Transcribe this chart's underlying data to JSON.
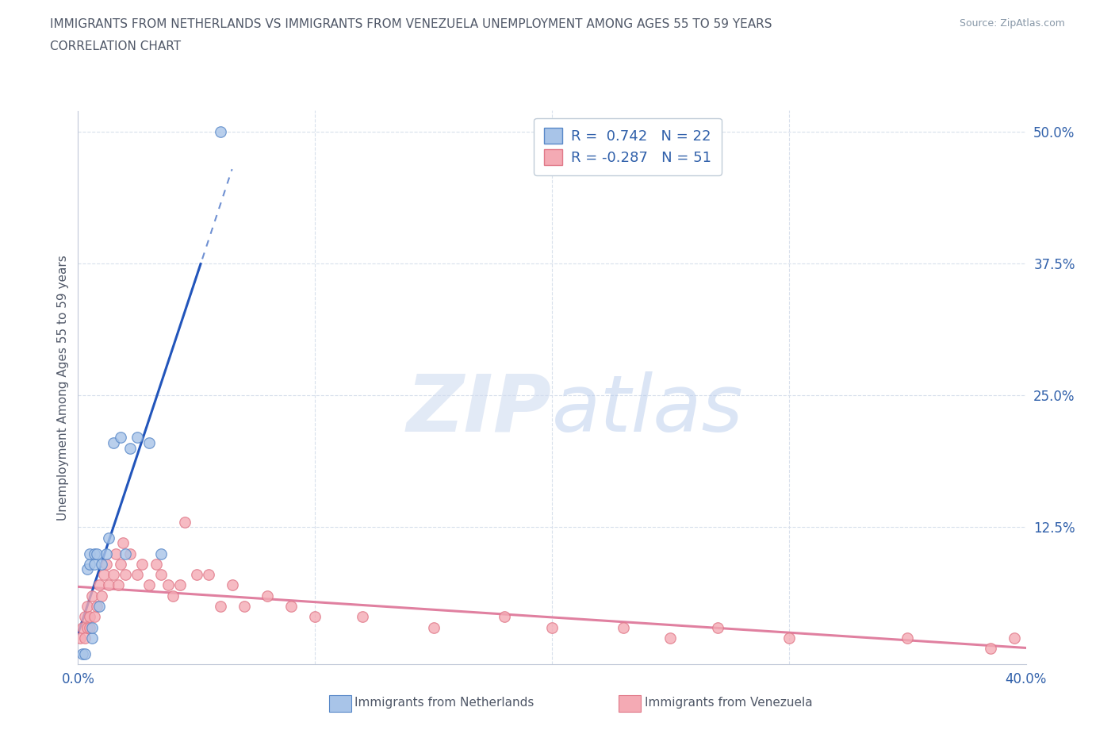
{
  "title_line1": "IMMIGRANTS FROM NETHERLANDS VS IMMIGRANTS FROM VENEZUELA UNEMPLOYMENT AMONG AGES 55 TO 59 YEARS",
  "title_line2": "CORRELATION CHART",
  "source": "Source: ZipAtlas.com",
  "ylabel": "Unemployment Among Ages 55 to 59 years",
  "xlim": [
    0.0,
    0.4
  ],
  "ylim": [
    0.0,
    0.5
  ],
  "xtick_vals": [
    0.0,
    0.4
  ],
  "xtick_labels": [
    "0.0%",
    "40.0%"
  ],
  "ytick_vals": [
    0.0,
    0.125,
    0.25,
    0.375,
    0.5
  ],
  "ytick_labels": [
    "",
    "12.5%",
    "25.0%",
    "37.5%",
    "50.0%"
  ],
  "watermark_zip": "ZIP",
  "watermark_atlas": "atlas",
  "legend_label1": "R =  0.742   N = 22",
  "legend_label2": "R = -0.287   N = 51",
  "netherlands_face": "#a8c4e8",
  "netherlands_edge": "#5888c8",
  "venezuela_face": "#f4aaB4",
  "venezuela_edge": "#e07888",
  "trend_nl_color": "#2255bb",
  "trend_vz_color": "#e080a0",
  "grid_color": "#d8e0ec",
  "title_color": "#505868",
  "axis_label_color": "#3060aa",
  "nl_x": [
    0.002,
    0.003,
    0.004,
    0.005,
    0.005,
    0.006,
    0.006,
    0.007,
    0.007,
    0.008,
    0.009,
    0.01,
    0.012,
    0.013,
    0.015,
    0.018,
    0.02,
    0.022,
    0.025,
    0.03,
    0.035,
    0.06
  ],
  "nl_y": [
    0.005,
    0.005,
    0.085,
    0.09,
    0.1,
    0.02,
    0.03,
    0.09,
    0.1,
    0.1,
    0.05,
    0.09,
    0.1,
    0.115,
    0.205,
    0.21,
    0.1,
    0.2,
    0.21,
    0.205,
    0.1,
    0.5
  ],
  "vz_x": [
    0.001,
    0.002,
    0.003,
    0.003,
    0.004,
    0.004,
    0.005,
    0.005,
    0.006,
    0.007,
    0.008,
    0.009,
    0.01,
    0.011,
    0.012,
    0.013,
    0.015,
    0.016,
    0.017,
    0.018,
    0.019,
    0.02,
    0.022,
    0.025,
    0.027,
    0.03,
    0.033,
    0.035,
    0.038,
    0.04,
    0.043,
    0.045,
    0.05,
    0.055,
    0.06,
    0.065,
    0.07,
    0.08,
    0.09,
    0.1,
    0.12,
    0.15,
    0.18,
    0.2,
    0.23,
    0.25,
    0.27,
    0.3,
    0.35,
    0.385,
    0.395
  ],
  "vz_y": [
    0.02,
    0.03,
    0.04,
    0.02,
    0.03,
    0.05,
    0.04,
    0.03,
    0.06,
    0.04,
    0.05,
    0.07,
    0.06,
    0.08,
    0.09,
    0.07,
    0.08,
    0.1,
    0.07,
    0.09,
    0.11,
    0.08,
    0.1,
    0.08,
    0.09,
    0.07,
    0.09,
    0.08,
    0.07,
    0.06,
    0.07,
    0.13,
    0.08,
    0.08,
    0.05,
    0.07,
    0.05,
    0.06,
    0.05,
    0.04,
    0.04,
    0.03,
    0.04,
    0.03,
    0.03,
    0.02,
    0.03,
    0.02,
    0.02,
    0.01,
    0.02
  ]
}
